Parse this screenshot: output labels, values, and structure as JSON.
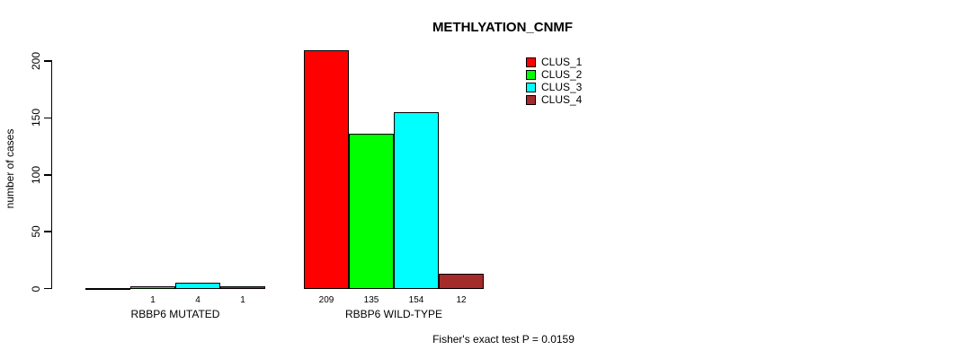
{
  "chart_data": {
    "type": "bar",
    "title": "METHLYATION_CNMF",
    "ylabel": "number of cases",
    "ylim": [
      0,
      200
    ],
    "yticks": [
      0,
      50,
      100,
      150,
      200
    ],
    "grid": false,
    "legend_position": "top-right",
    "series": [
      {
        "name": "CLUS_1",
        "color": "#ff0000"
      },
      {
        "name": "CLUS_2",
        "color": "#00ff00"
      },
      {
        "name": "CLUS_3",
        "color": "#00ffff"
      },
      {
        "name": "CLUS_4",
        "color": "#a52a2a"
      }
    ],
    "categories": [
      "RBBP6 MUTATED",
      "RBBP6 WILD-TYPE"
    ],
    "groups": [
      {
        "label": "RBBP6 MUTATED",
        "values": [
          0,
          1,
          4,
          1
        ],
        "value_labels": [
          "",
          "1",
          "4",
          "1"
        ]
      },
      {
        "label": "RBBP6 WILD-TYPE",
        "values": [
          209,
          135,
          154,
          12
        ],
        "value_labels": [
          "209",
          "135",
          "154",
          "12"
        ]
      }
    ],
    "note": "Fisher's exact test P = 0.0159"
  }
}
